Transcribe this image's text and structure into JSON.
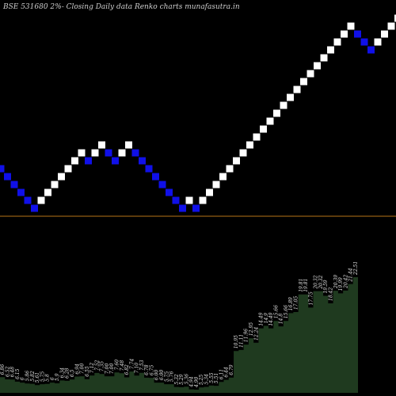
{
  "chart_data": {
    "type": "renko",
    "title": "BSE 531680  2%-  Closing Daily data  Renko  charts munafasutra.in",
    "colors": {
      "background": "#000000",
      "up": "#ffffff",
      "down": "#1010e8",
      "brick_border": "#000000",
      "lines": "#b87318",
      "area": "#1f3a1f",
      "labels": "#e6e6e6"
    },
    "reference_lines": [
      11.41,
      7.0
    ],
    "bricks": [
      {
        "price": 7.9,
        "dir": "down"
      },
      {
        "price": 7.75,
        "dir": "down"
      },
      {
        "price": 7.6,
        "dir": "down"
      },
      {
        "price": 7.45,
        "dir": "down"
      },
      {
        "price": 7.3,
        "dir": "down"
      },
      {
        "price": 7.15,
        "dir": "down"
      },
      {
        "price": 7.3,
        "dir": "up"
      },
      {
        "price": 7.45,
        "dir": "up"
      },
      {
        "price": 7.6,
        "dir": "up"
      },
      {
        "price": 7.75,
        "dir": "up"
      },
      {
        "price": 7.9,
        "dir": "up"
      },
      {
        "price": 8.05,
        "dir": "up"
      },
      {
        "price": 8.2,
        "dir": "up"
      },
      {
        "price": 8.05,
        "dir": "down"
      },
      {
        "price": 8.2,
        "dir": "up"
      },
      {
        "price": 8.35,
        "dir": "up"
      },
      {
        "price": 8.2,
        "dir": "down"
      },
      {
        "price": 8.05,
        "dir": "down"
      },
      {
        "price": 8.2,
        "dir": "up"
      },
      {
        "price": 8.35,
        "dir": "up"
      },
      {
        "price": 8.2,
        "dir": "down"
      },
      {
        "price": 8.05,
        "dir": "down"
      },
      {
        "price": 7.9,
        "dir": "down"
      },
      {
        "price": 7.75,
        "dir": "down"
      },
      {
        "price": 7.6,
        "dir": "down"
      },
      {
        "price": 7.45,
        "dir": "down"
      },
      {
        "price": 7.3,
        "dir": "down"
      },
      {
        "price": 7.15,
        "dir": "down"
      },
      {
        "price": 7.3,
        "dir": "up"
      },
      {
        "price": 7.15,
        "dir": "down"
      },
      {
        "price": 7.3,
        "dir": "up"
      },
      {
        "price": 7.45,
        "dir": "up"
      },
      {
        "price": 7.6,
        "dir": "up"
      },
      {
        "price": 7.75,
        "dir": "up"
      },
      {
        "price": 7.9,
        "dir": "up"
      },
      {
        "price": 8.05,
        "dir": "up"
      },
      {
        "price": 8.2,
        "dir": "up"
      },
      {
        "price": 8.35,
        "dir": "up"
      },
      {
        "price": 8.5,
        "dir": "up"
      },
      {
        "price": 8.65,
        "dir": "up"
      },
      {
        "price": 8.8,
        "dir": "up"
      },
      {
        "price": 8.95,
        "dir": "up"
      },
      {
        "price": 9.1,
        "dir": "up"
      },
      {
        "price": 9.25,
        "dir": "up"
      },
      {
        "price": 9.4,
        "dir": "up"
      },
      {
        "price": 9.55,
        "dir": "up"
      },
      {
        "price": 9.7,
        "dir": "up"
      },
      {
        "price": 9.85,
        "dir": "up"
      },
      {
        "price": 10.0,
        "dir": "up"
      },
      {
        "price": 10.15,
        "dir": "up"
      },
      {
        "price": 10.3,
        "dir": "up"
      },
      {
        "price": 10.45,
        "dir": "up"
      },
      {
        "price": 10.6,
        "dir": "up"
      },
      {
        "price": 10.45,
        "dir": "down"
      },
      {
        "price": 10.3,
        "dir": "down"
      },
      {
        "price": 10.15,
        "dir": "down"
      },
      {
        "price": 10.3,
        "dir": "up"
      },
      {
        "price": 10.45,
        "dir": "up"
      },
      {
        "price": 10.6,
        "dir": "up"
      },
      {
        "price": 10.75,
        "dir": "up"
      }
    ],
    "close_labels": [
      "6.86",
      "6.52",
      "6.48",
      "6.15",
      "6",
      "5.86",
      "5.82",
      "5.61",
      "5.75",
      "5.8",
      "6",
      "5.9",
      "6.34",
      "6.28",
      "6.5",
      "6.94",
      "7.00",
      "6.55",
      "7.12",
      "7.52",
      "7.35",
      "7.00",
      "7.00",
      "7.60",
      "7.48",
      "6.82",
      "7.74",
      "7.10",
      "7.53",
      "6.78",
      "6.75",
      "6.00",
      "6.00",
      "5.75",
      "5.76",
      "5.32",
      "5.29",
      "5.36",
      "4.94",
      "4.90",
      "5.25",
      "5.34",
      "5.55",
      "5.51",
      "6.11",
      "6.44",
      "6.79",
      "10.95",
      "11.11",
      "11.96",
      "12.95",
      "12.24",
      "14.49",
      "14.9",
      "14.49",
      "15.66",
      "14.8",
      "15.66",
      "16.89",
      "17.05",
      "19.81",
      "19.81",
      "17.75",
      "20.32",
      "20.32",
      "19.59",
      "18.42",
      "20.39",
      "19.99",
      "20.42",
      "21.44",
      "22.51"
    ]
  }
}
